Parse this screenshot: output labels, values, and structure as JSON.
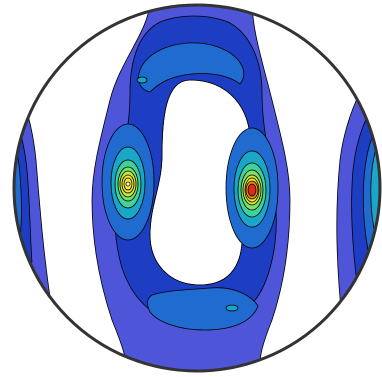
{
  "figure": {
    "type": "pole-figure-contour",
    "projection": "circular",
    "background": "#ffffff",
    "outline_color": "#333333",
    "contour_line_color": "#000000",
    "colormap": [
      "#4f55d8",
      "#1d3ec2",
      "#1f6bd0",
      "#1aa6c6",
      "#3fd39b",
      "#c7e83a",
      "#f7ed2a",
      "#f08a18",
      "#e02a12"
    ],
    "features": [
      {
        "name": "central-ring",
        "levels": 3
      },
      {
        "name": "left-side-peak",
        "levels": 8
      },
      {
        "name": "right-side-peak",
        "levels": 9
      },
      {
        "name": "left-edge-band",
        "levels": 4
      },
      {
        "name": "right-edge-band",
        "levels": 4
      }
    ]
  }
}
